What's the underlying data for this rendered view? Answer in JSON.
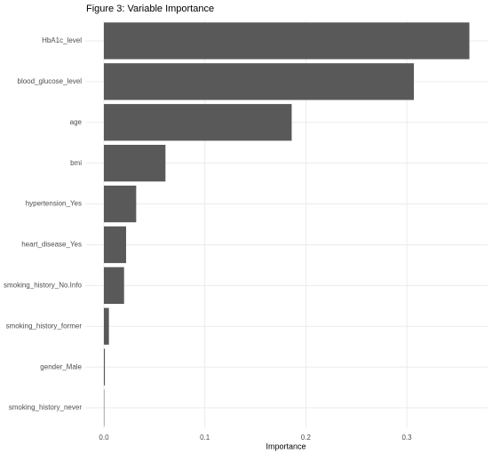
{
  "chart_data": {
    "type": "bar",
    "orientation": "horizontal",
    "title": "Figure 3: Variable Importance",
    "x_label": "Importance",
    "categories": [
      "HbA1c_level",
      "blood_glucose_level",
      "age",
      "bmi",
      "hypertension_Yes",
      "heart_disease_Yes",
      "smoking_history_No.Info",
      "smoking_history_former",
      "gender_Male",
      "smoking_history_never"
    ],
    "values": [
      0.362,
      0.307,
      0.186,
      0.061,
      0.032,
      0.022,
      0.02,
      0.005,
      0.001,
      0.0004
    ],
    "color": "#595959",
    "xlim": [
      -0.018,
      0.38
    ],
    "xticks": [
      {
        "value": 0,
        "label": "0.0"
      },
      0.1,
      0.2,
      0.3
    ],
    "grid": true
  }
}
